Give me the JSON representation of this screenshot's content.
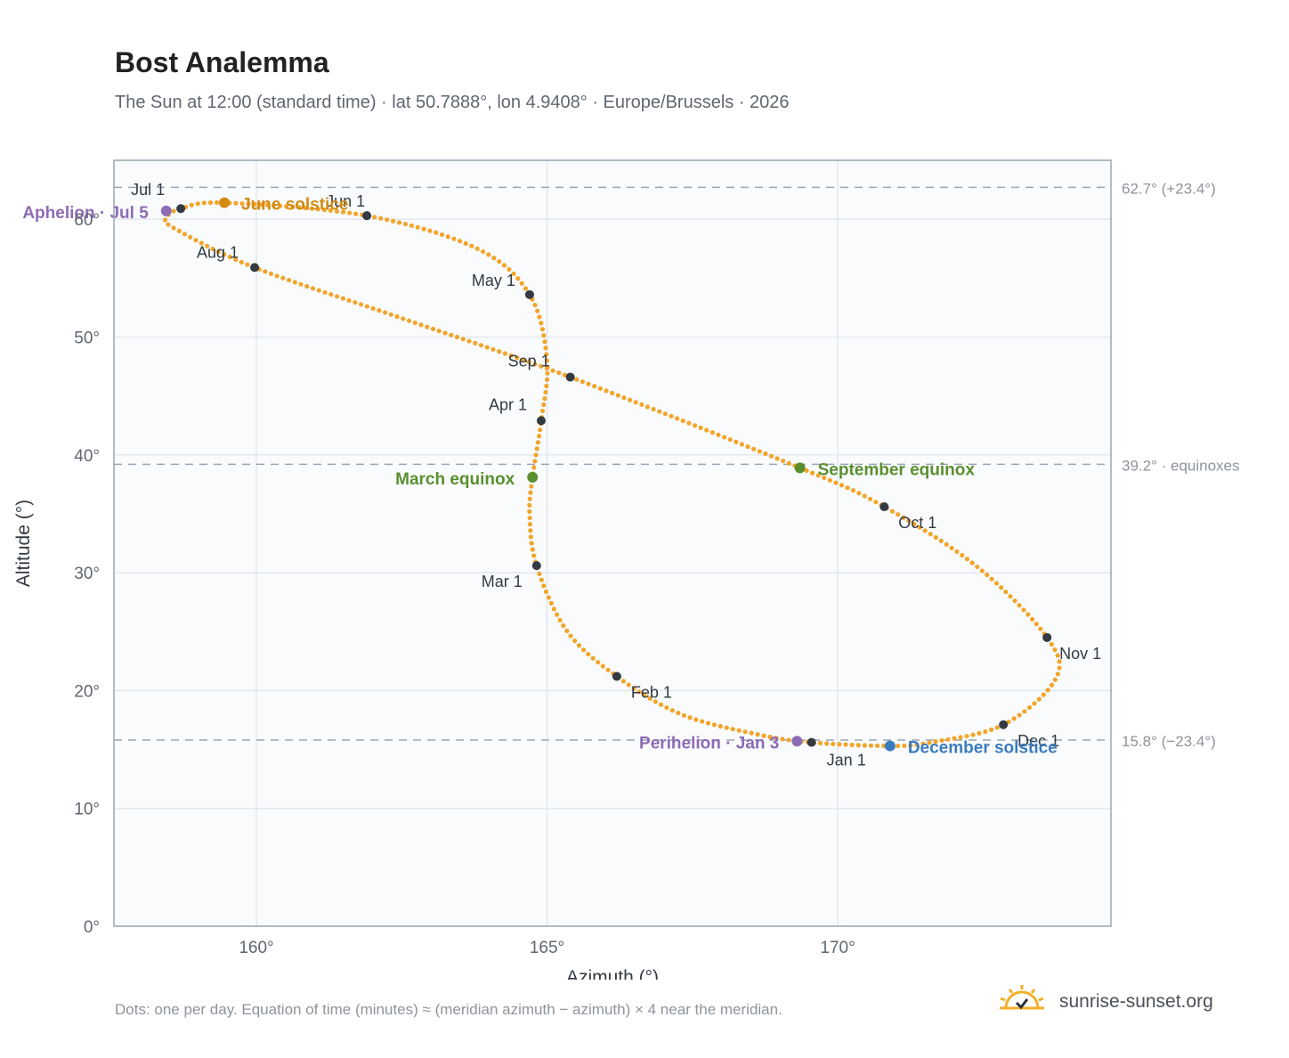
{
  "title": "Bost Analemma",
  "subtitle": "The Sun at 12:00 (standard time) · lat 50.7888°, lon 4.9408° · Europe/Brussels · 2026",
  "footnote": "Dots: one per day. Equation of time (minutes) ≈ (meridian azimuth − azimuth) × 4 near the meridian.",
  "brand": {
    "text": "sunrise-sunset.org",
    "icon": "sun-icon",
    "color": "#f2b02a"
  },
  "colors": {
    "curve": "#f2a52a",
    "month": "#333a42",
    "solstice_june": "#d38b13",
    "solstice_december": "#3a7bbf",
    "equinox": "#5a8f2e",
    "apsis": "#8e6bb5",
    "reference": "#9aa6b2"
  },
  "chart_data": {
    "type": "scatter",
    "xlabel": "Azimuth (°)",
    "ylabel": "Altitude (°)",
    "xlim": [
      157.55,
      174.7
    ],
    "ylim": [
      0,
      65
    ],
    "xticks": [
      {
        "value": 160,
        "label": "160°"
      },
      {
        "value": 165,
        "label": "165°"
      },
      {
        "value": 170,
        "label": "170°"
      }
    ],
    "yticks": [
      {
        "value": 0,
        "label": "0°"
      },
      {
        "value": 10,
        "label": "10°"
      },
      {
        "value": 20,
        "label": "20°"
      },
      {
        "value": 30,
        "label": "30°"
      },
      {
        "value": 40,
        "label": "40°"
      },
      {
        "value": 50,
        "label": "50°"
      },
      {
        "value": 60,
        "label": "60°"
      }
    ],
    "grid": true,
    "reference_lines": [
      {
        "y": 62.7,
        "label": "62.7° (+23.4°)"
      },
      {
        "y": 39.2,
        "label": "39.2° · equinoxes"
      },
      {
        "y": 15.8,
        "label": "15.8° (−23.4°)"
      }
    ],
    "months": [
      {
        "label": "Jan 1",
        "x": 169.55,
        "y": 15.6
      },
      {
        "label": "Feb 1",
        "x": 166.2,
        "y": 21.2
      },
      {
        "label": "Mar 1",
        "x": 164.82,
        "y": 30.6
      },
      {
        "label": "Apr 1",
        "x": 164.9,
        "y": 42.9
      },
      {
        "label": "May 1",
        "x": 164.7,
        "y": 53.6
      },
      {
        "label": "Jun 1",
        "x": 161.9,
        "y": 60.3
      },
      {
        "label": "Jul 1",
        "x": 158.7,
        "y": 60.9
      },
      {
        "label": "Aug 1",
        "x": 159.97,
        "y": 55.9
      },
      {
        "label": "Sep 1",
        "x": 165.4,
        "y": 46.6
      },
      {
        "label": "Oct 1",
        "x": 170.8,
        "y": 35.6
      },
      {
        "label": "Nov 1",
        "x": 173.6,
        "y": 24.5
      },
      {
        "label": "Dec 1",
        "x": 172.85,
        "y": 17.1
      }
    ],
    "events": [
      {
        "label": "June solstice",
        "x": 159.45,
        "y": 61.4,
        "kind": "solstice_june"
      },
      {
        "label": "December solstice",
        "x": 170.9,
        "y": 15.3,
        "kind": "solstice_december"
      },
      {
        "label": "March equinox",
        "x": 164.75,
        "y": 38.1,
        "kind": "equinox"
      },
      {
        "label": "September equinox",
        "x": 169.35,
        "y": 38.9,
        "kind": "equinox"
      },
      {
        "label": "Aphelion · Jul 5",
        "x": 158.45,
        "y": 60.7,
        "kind": "apsis"
      },
      {
        "label": "Perihelion · Jan 3",
        "x": 169.3,
        "y": 15.7,
        "kind": "apsis"
      }
    ],
    "path": [
      {
        "x": 170.9,
        "y": 15.3
      },
      {
        "x": 169.55,
        "y": 15.6
      },
      {
        "x": 168.6,
        "y": 16.3
      },
      {
        "x": 167.3,
        "y": 18.0
      },
      {
        "x": 166.2,
        "y": 21.2
      },
      {
        "x": 165.35,
        "y": 25.0
      },
      {
        "x": 164.82,
        "y": 30.6
      },
      {
        "x": 164.7,
        "y": 35.0
      },
      {
        "x": 164.75,
        "y": 38.1
      },
      {
        "x": 164.9,
        "y": 42.9
      },
      {
        "x": 165.0,
        "y": 48.0
      },
      {
        "x": 164.7,
        "y": 53.6
      },
      {
        "x": 163.8,
        "y": 57.5
      },
      {
        "x": 161.9,
        "y": 60.3
      },
      {
        "x": 159.45,
        "y": 61.4
      },
      {
        "x": 158.7,
        "y": 60.9
      },
      {
        "x": 158.45,
        "y": 60.1
      },
      {
        "x": 158.6,
        "y": 59.2
      },
      {
        "x": 159.97,
        "y": 55.9
      },
      {
        "x": 162.5,
        "y": 51.6
      },
      {
        "x": 165.4,
        "y": 46.6
      },
      {
        "x": 169.35,
        "y": 38.9
      },
      {
        "x": 170.8,
        "y": 35.6
      },
      {
        "x": 172.4,
        "y": 30.5
      },
      {
        "x": 173.6,
        "y": 24.5
      },
      {
        "x": 173.75,
        "y": 21.0
      },
      {
        "x": 172.85,
        "y": 17.1
      },
      {
        "x": 171.6,
        "y": 15.6
      },
      {
        "x": 170.9,
        "y": 15.3
      }
    ]
  }
}
